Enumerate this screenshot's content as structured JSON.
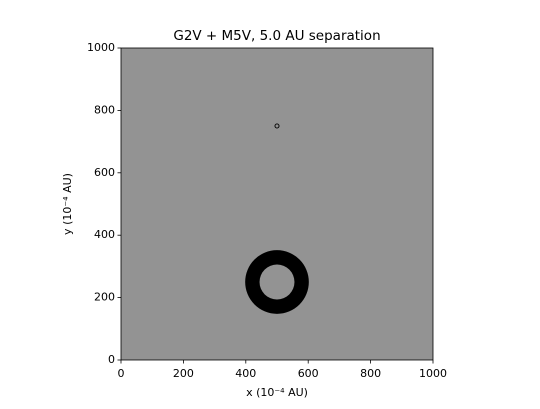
{
  "chart_data": {
    "type": "image",
    "title": "G2V + M5V, 5.0 AU separation",
    "xlabel": "x (10⁻⁴ AU)",
    "ylabel": "y (10⁻⁴ AU)",
    "xlim": [
      0,
      1000
    ],
    "ylim": [
      0,
      1000
    ],
    "xticks": [
      0,
      200,
      400,
      600,
      800,
      1000
    ],
    "yticks": [
      0,
      200,
      400,
      600,
      800,
      1000
    ],
    "background": "#939393",
    "rings": [
      {
        "x": 500,
        "y": 250,
        "outer_radius": 102,
        "inner_radius": 56,
        "color": "#000000"
      },
      {
        "x": 500,
        "y": 750,
        "outer_radius": 8,
        "inner_radius": 5,
        "color": "#000000"
      }
    ]
  }
}
